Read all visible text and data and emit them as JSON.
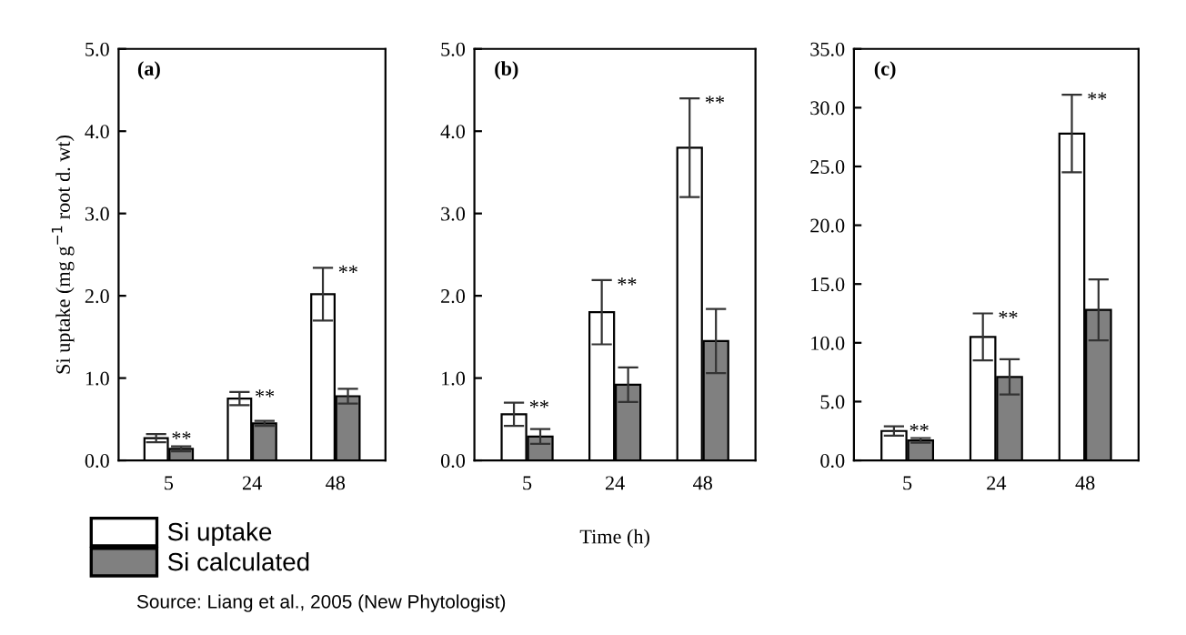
{
  "chart_data": [
    {
      "type": "bar",
      "title": "(a)",
      "ylabel": "Si uptake (mg g$^{−1}$ root d. wt)",
      "categories": [
        "5",
        "24",
        "48"
      ],
      "series": [
        {
          "name": "Si uptake",
          "color": "#ffffff",
          "values": [
            0.27,
            0.75,
            2.02
          ],
          "errors": [
            0.05,
            0.08,
            0.32
          ]
        },
        {
          "name": "Si calculated",
          "color": "#808080",
          "values": [
            0.14,
            0.45,
            0.78
          ],
          "errors": [
            0.03,
            0.03,
            0.09
          ]
        }
      ],
      "ylim": [
        0,
        5
      ],
      "yticks": [
        {
          "value": 0,
          "label": "0.0"
        },
        {
          "value": 1,
          "label": "1.0"
        },
        {
          "value": 2,
          "label": "2.0"
        },
        {
          "value": 3,
          "label": "3.0"
        },
        {
          "value": 4,
          "label": "4.0"
        },
        {
          "value": 5,
          "label": "5.0"
        }
      ],
      "legend": "bottom",
      "annotations": [
        {
          "text": "**",
          "x": "5",
          "y": 0.27
        },
        {
          "text": "**",
          "x": "24",
          "y": 0.75
        },
        {
          "text": "**",
          "x": "48",
          "y": 2.02
        },
        "Source: Liang et al., 2005 (New Phytologist)"
      ]
    },
    {
      "type": "bar",
      "title": "(b)",
      "xlabel": "Time (h)",
      "categories": [
        "5",
        "24",
        "48"
      ],
      "series": [
        {
          "color": "#ffffff",
          "values": [
            0.56,
            1.8,
            3.8
          ],
          "errors": [
            0.14,
            0.39,
            0.6
          ]
        },
        {
          "color": "#808080",
          "values": [
            0.29,
            0.92,
            1.45
          ],
          "errors": [
            0.09,
            0.21,
            0.39
          ]
        }
      ],
      "ylim": [
        0,
        5
      ],
      "yticks": [
        {
          "value": 0,
          "label": "0.0"
        },
        {
          "value": 1,
          "label": "1.0"
        },
        {
          "value": 2,
          "label": "2.0"
        },
        {
          "value": 3,
          "label": "3.0"
        },
        {
          "value": 4,
          "label": "4.0"
        },
        {
          "value": 5,
          "label": "5.0"
        }
      ],
      "annotations": [
        {
          "text": "**",
          "x": "5",
          "y": 0.56
        },
        {
          "text": "**",
          "x": "24",
          "y": 1.8
        },
        {
          "text": "**",
          "x": "48",
          "y": 3.8
        }
      ]
    },
    {
      "type": "bar",
      "title": "(c)",
      "categories": [
        "5",
        "24",
        "48"
      ],
      "series": [
        {
          "color": "#ffffff",
          "values": [
            2.5,
            10.5,
            27.8
          ],
          "errors": [
            0.4,
            2.0,
            3.3
          ]
        },
        {
          "color": "#808080",
          "values": [
            1.7,
            7.1,
            12.8
          ],
          "errors": [
            0.2,
            1.5,
            2.6
          ]
        }
      ],
      "ylim": [
        0,
        35
      ],
      "yticks": [
        {
          "value": 0,
          "label": "0.0"
        },
        {
          "value": 5,
          "label": "5.0"
        },
        {
          "value": 10,
          "label": "10.0"
        },
        {
          "value": 15,
          "label": "15.0"
        },
        {
          "value": 20,
          "label": "20.0"
        },
        {
          "value": 25,
          "label": "25.0"
        },
        {
          "value": 30,
          "label": "30.0"
        },
        {
          "value": 35,
          "label": "35.0"
        }
      ],
      "annotations": [
        {
          "text": "**",
          "x": "5",
          "y": 2.5
        },
        {
          "text": "**",
          "x": "24",
          "y": 10.5
        },
        {
          "text": "**",
          "x": "48",
          "y": 27.8
        }
      ]
    }
  ]
}
